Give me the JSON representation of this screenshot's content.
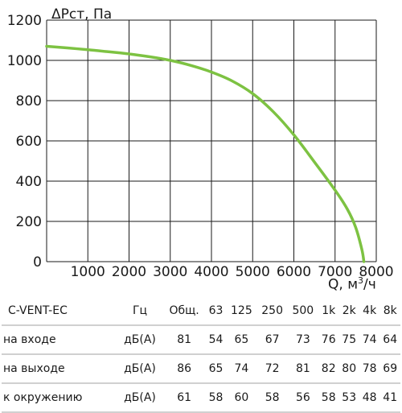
{
  "chart_data": {
    "type": "line",
    "ylabel": "ΔPст, Па",
    "xlabel_prefix": "Q, м",
    "xlabel_sup": "3",
    "xlabel_suffix": "/ч",
    "xlim": [
      0,
      8000
    ],
    "ylim": [
      0,
      1200
    ],
    "x_ticks": [
      0,
      1000,
      2000,
      3000,
      4000,
      5000,
      6000,
      7000,
      8000
    ],
    "x_tick_labels": [
      "1000",
      "2000",
      "3000",
      "4000",
      "5000",
      "6000",
      "7000",
      "8000"
    ],
    "y_ticks": [
      0,
      200,
      400,
      600,
      800,
      1000,
      1200
    ],
    "y_tick_labels": [
      "0",
      "200",
      "400",
      "600",
      "800",
      "1000",
      "1200"
    ],
    "grid": true,
    "series": [
      {
        "color": "#7dc242",
        "x": [
          0,
          500,
          1000,
          1500,
          2000,
          2500,
          3000,
          3500,
          4000,
          4500,
          5000,
          5500,
          6000,
          6500,
          7000,
          7300,
          7500,
          7650,
          7700
        ],
        "y": [
          1070,
          1062,
          1053,
          1043,
          1032,
          1018,
          1000,
          975,
          942,
          898,
          835,
          745,
          630,
          495,
          355,
          260,
          170,
          60,
          0
        ]
      }
    ]
  },
  "table": {
    "header": [
      "C-VENT-EC",
      "Гц",
      "Общ.",
      "63",
      "125",
      "250",
      "500",
      "1k",
      "2k",
      "4k",
      "8k"
    ],
    "rows": [
      [
        "на входе",
        "дБ(А)",
        "81",
        "54",
        "65",
        "67",
        "73",
        "76",
        "75",
        "74",
        "64"
      ],
      [
        "на выходе",
        "дБ(А)",
        "86",
        "65",
        "74",
        "72",
        "81",
        "82",
        "80",
        "78",
        "69"
      ],
      [
        "к окружению",
        "дБ(А)",
        "61",
        "58",
        "60",
        "58",
        "56",
        "58",
        "53",
        "48",
        "41"
      ]
    ]
  }
}
